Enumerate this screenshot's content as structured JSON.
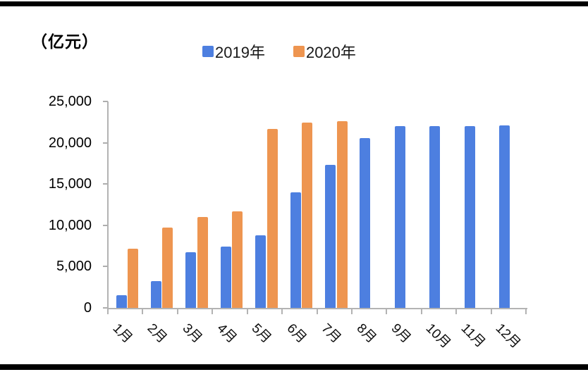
{
  "chart_data": {
    "type": "bar",
    "title": "（亿元）",
    "unit": "亿元",
    "categories": [
      "1月",
      "2月",
      "3月",
      "4月",
      "5月",
      "6月",
      "7月",
      "8月",
      "9月",
      "10月",
      "11月",
      "12月"
    ],
    "series": [
      {
        "name": "2019年",
        "color": "#4D7FE0",
        "values": [
          1500,
          3200,
          6700,
          7400,
          8800,
          14000,
          17300,
          20600,
          22000,
          22000,
          22000,
          22100
        ]
      },
      {
        "name": "2020年",
        "color": "#EE9550",
        "values": [
          7200,
          9700,
          11000,
          11700,
          21700,
          22400,
          22600,
          null,
          null,
          null,
          null,
          null
        ]
      }
    ],
    "xlabel": "",
    "ylabel": "（亿元）",
    "ylim": [
      0,
      25000
    ],
    "ytick_interval": 5000,
    "ytick_labels": [
      "0",
      "5,000",
      "10,000",
      "15,000",
      "20,000",
      "25,000"
    ],
    "grid": false,
    "legend_position": "top",
    "axis_color": "#b3b3b3",
    "text_color": "#000000"
  },
  "legend": {
    "items": [
      {
        "label": "2019年",
        "color": "#4D7FE0"
      },
      {
        "label": "2020年",
        "color": "#EE9550"
      }
    ]
  }
}
